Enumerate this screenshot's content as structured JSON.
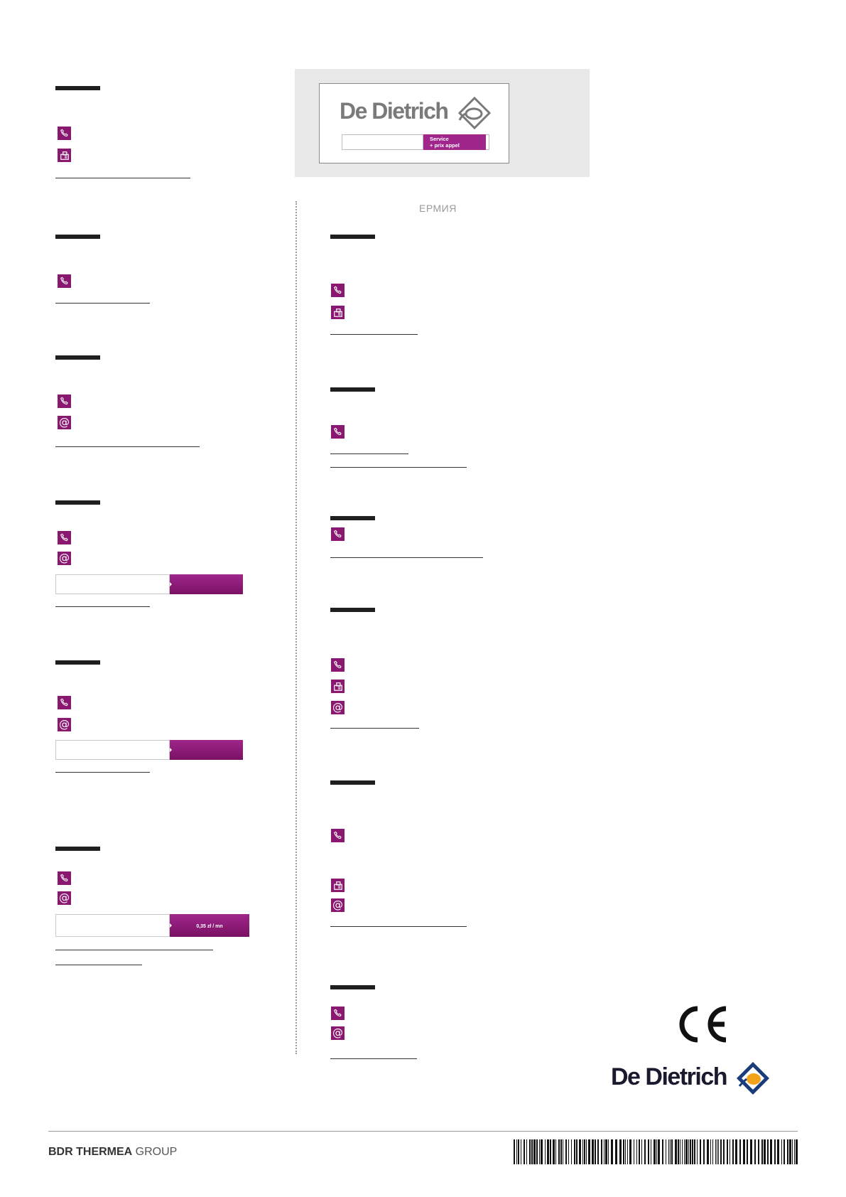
{
  "header_card": {
    "brand": "De Dietrich",
    "service_label_1": "Service",
    "service_label_2": "+ prix appel"
  },
  "right_heading": "ЕРМИЯ",
  "poland_price": "0,35 zł / mn",
  "footer": {
    "group_bold": "BDR THERMEA",
    "group_light": "GROUP",
    "brand": "De Dietrich",
    "ce_mark": "CE"
  },
  "icons": {
    "phone": "phone-icon",
    "fax": "fax-icon",
    "email": "at-icon",
    "logo": "de-dietrich-logo-icon",
    "barcode": "barcode"
  },
  "colors": {
    "accent_purple": "#8a1870",
    "bar_dark": "#1f1f1f",
    "card_bg": "#e8e8e8"
  }
}
